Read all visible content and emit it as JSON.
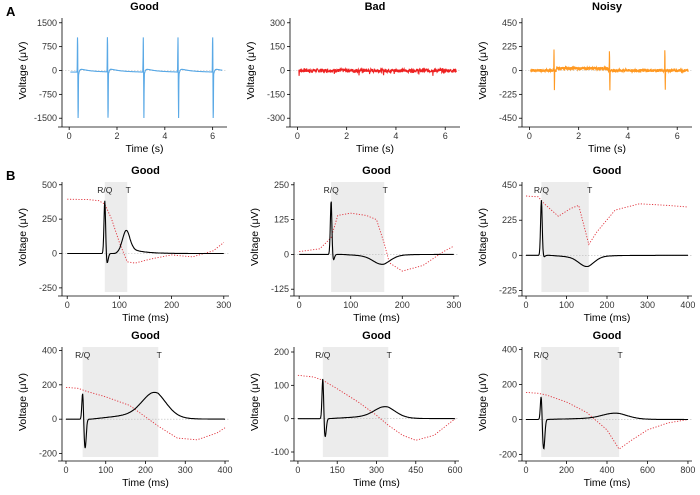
{
  "figure": {
    "panel_labels": [
      "A",
      "B"
    ]
  },
  "chart_data": [
    {
      "id": "A1",
      "type": "line",
      "title": "Good",
      "xlabel": "Time (s)",
      "ylabel": "Voltage (μV)",
      "xlim": [
        -0.3,
        6.6
      ],
      "ylim": [
        -1650,
        1650
      ],
      "xticks": [
        0,
        2,
        4,
        6
      ],
      "yticks": [
        -1500,
        -750,
        0,
        750,
        1500
      ],
      "grid": false,
      "color": "#5aa9e6",
      "series": [
        {
          "style": "repeating-ecg",
          "beats_s": [
            0.35,
            1.6,
            3.1,
            4.55,
            6.0
          ],
          "peak": 1100,
          "trough": -1450,
          "t_wave": 180,
          "baseline_drift": -200
        }
      ]
    },
    {
      "id": "A2",
      "type": "line",
      "title": "Bad",
      "xlabel": "Time (s)",
      "ylabel": "Voltage (μV)",
      "xlim": [
        -0.3,
        6.6
      ],
      "ylim": [
        -330,
        330
      ],
      "xticks": [
        0,
        2,
        4,
        6
      ],
      "yticks": [
        -300,
        -150,
        0,
        150,
        300
      ],
      "grid": false,
      "color": "#ee2222",
      "series": [
        {
          "style": "flat-noise",
          "level": 0,
          "noise": 12
        }
      ]
    },
    {
      "id": "A3",
      "type": "line",
      "title": "Noisy",
      "xlabel": "Time (s)",
      "ylabel": "Voltage (μV)",
      "xlim": [
        -0.3,
        6.6
      ],
      "ylim": [
        -495,
        495
      ],
      "xticks": [
        0,
        2,
        4,
        6
      ],
      "yticks": [
        -450,
        -225,
        0,
        225,
        450
      ],
      "grid": false,
      "color": "#ff9922",
      "series": [
        {
          "style": "noisy-spikes",
          "spikes_s": [
            1.0,
            3.25,
            5.5
          ],
          "peak": 200,
          "trough": -190,
          "noise": 14
        }
      ]
    },
    {
      "id": "B1",
      "type": "line",
      "title": "Good",
      "xlabel": "Time (ms)",
      "ylabel": "Voltage (μV)",
      "xlim": [
        -10,
        310
      ],
      "ylim": [
        -280,
        520
      ],
      "xticks": [
        0,
        100,
        200,
        300
      ],
      "yticks": [
        -250,
        0,
        250,
        500
      ],
      "grid": false,
      "shaded_window": [
        72,
        115
      ],
      "annotations": [
        "R/Q",
        "T"
      ],
      "solid": {
        "rq": 72,
        "rpeak": 390,
        "s": -70,
        "t": 115,
        "tpeak": 155,
        "end": 300
      },
      "dotted": [
        [
          0,
          395
        ],
        [
          40,
          392
        ],
        [
          60,
          385
        ],
        [
          72,
          360
        ],
        [
          85,
          250
        ],
        [
          100,
          80
        ],
        [
          115,
          -60
        ],
        [
          130,
          -70
        ],
        [
          160,
          -40
        ],
        [
          200,
          -10
        ],
        [
          240,
          -25
        ],
        [
          280,
          20
        ],
        [
          300,
          80
        ]
      ]
    },
    {
      "id": "B2",
      "type": "line",
      "title": "Good",
      "xlabel": "Time (ms)",
      "ylabel": "Voltage (μV)",
      "xlim": [
        -10,
        310
      ],
      "ylim": [
        -135,
        260
      ],
      "xticks": [
        0,
        100,
        200,
        300
      ],
      "yticks": [
        -125,
        0,
        125,
        250
      ],
      "grid": false,
      "shaded_window": [
        62,
        165
      ],
      "annotations": [
        "R/Q",
        "T"
      ],
      "solid": {
        "rq": 62,
        "rpeak": 195,
        "s": -20,
        "t": 165,
        "tpeak": -30,
        "end": 300
      },
      "dotted": [
        [
          0,
          10
        ],
        [
          40,
          20
        ],
        [
          62,
          60
        ],
        [
          75,
          140
        ],
        [
          100,
          148
        ],
        [
          130,
          140
        ],
        [
          150,
          125
        ],
        [
          165,
          40
        ],
        [
          175,
          -30
        ],
        [
          200,
          -60
        ],
        [
          240,
          -40
        ],
        [
          280,
          10
        ],
        [
          300,
          30
        ]
      ]
    },
    {
      "id": "B3",
      "type": "line",
      "title": "Good",
      "xlabel": "Time (ms)",
      "ylabel": "Voltage (μV)",
      "xlim": [
        -10,
        410
      ],
      "ylim": [
        -235,
        470
      ],
      "xticks": [
        0,
        100,
        200,
        300,
        400
      ],
      "yticks": [
        -225,
        0,
        225,
        450
      ],
      "grid": false,
      "shaded_window": [
        38,
        155
      ],
      "annotations": [
        "R/Q",
        "T"
      ],
      "solid": {
        "rq": 38,
        "rpeak": 355,
        "s": -10,
        "t": 155,
        "tpeak": -60,
        "end": 400
      },
      "dotted": [
        [
          0,
          380
        ],
        [
          30,
          375
        ],
        [
          45,
          330
        ],
        [
          80,
          250
        ],
        [
          110,
          300
        ],
        [
          130,
          320
        ],
        [
          155,
          70
        ],
        [
          175,
          150
        ],
        [
          220,
          290
        ],
        [
          280,
          330
        ],
        [
          350,
          320
        ],
        [
          400,
          310
        ]
      ]
    },
    {
      "id": "B4",
      "type": "line",
      "title": "Good",
      "xlabel": "Time (ms)",
      "ylabel": "Voltage (μV)",
      "xlim": [
        -10,
        410
      ],
      "ylim": [
        -220,
        420
      ],
      "xticks": [
        0,
        100,
        200,
        300,
        400
      ],
      "yticks": [
        -200,
        0,
        200,
        400
      ],
      "grid": false,
      "shaded_window": [
        42,
        232
      ],
      "annotations": [
        "R/Q",
        "T"
      ],
      "solid": {
        "rq": 42,
        "rpeak": 165,
        "s": -170,
        "t": 232,
        "tpeak": 130,
        "end": 400
      },
      "dotted": [
        [
          0,
          185
        ],
        [
          30,
          180
        ],
        [
          55,
          160
        ],
        [
          100,
          130
        ],
        [
          160,
          80
        ],
        [
          232,
          -40
        ],
        [
          280,
          -110
        ],
        [
          330,
          -120
        ],
        [
          380,
          -80
        ],
        [
          400,
          -50
        ]
      ]
    },
    {
      "id": "B5",
      "type": "line",
      "title": "Good",
      "xlabel": "Time (ms)",
      "ylabel": "Voltage (μV)",
      "xlim": [
        -15,
        615
      ],
      "ylim": [
        -115,
        215
      ],
      "xticks": [
        0,
        150,
        300,
        450,
        600
      ],
      "yticks": [
        -100,
        0,
        100,
        200
      ],
      "grid": false,
      "shaded_window": [
        95,
        345
      ],
      "annotations": [
        "R/Q",
        "T"
      ],
      "solid": {
        "rq": 95,
        "rpeak": 125,
        "s": -55,
        "t": 345,
        "tpeak": 30,
        "end": 600
      },
      "dotted": [
        [
          0,
          130
        ],
        [
          60,
          125
        ],
        [
          95,
          115
        ],
        [
          150,
          90
        ],
        [
          230,
          50
        ],
        [
          300,
          10
        ],
        [
          345,
          -20
        ],
        [
          400,
          -50
        ],
        [
          450,
          -65
        ],
        [
          520,
          -50
        ],
        [
          600,
          0
        ]
      ]
    },
    {
      "id": "B6",
      "type": "line",
      "title": "Good",
      "xlabel": "Time (ms)",
      "ylabel": "Voltage (μV)",
      "xlim": [
        -20,
        820
      ],
      "ylim": [
        -215,
        415
      ],
      "xticks": [
        0,
        200,
        400,
        600,
        800
      ],
      "yticks": [
        -200,
        0,
        200,
        400
      ],
      "grid": false,
      "shaded_window": [
        75,
        460
      ],
      "annotations": [
        "R/Q",
        "T"
      ],
      "solid": {
        "rq": 75,
        "rpeak": 145,
        "s": -170,
        "t": 460,
        "tpeak": 30,
        "end": 800
      },
      "dotted": [
        [
          0,
          155
        ],
        [
          60,
          150
        ],
        [
          100,
          140
        ],
        [
          200,
          100
        ],
        [
          300,
          40
        ],
        [
          400,
          -60
        ],
        [
          460,
          -170
        ],
        [
          520,
          -120
        ],
        [
          600,
          -60
        ],
        [
          700,
          -20
        ],
        [
          800,
          0
        ]
      ]
    }
  ]
}
